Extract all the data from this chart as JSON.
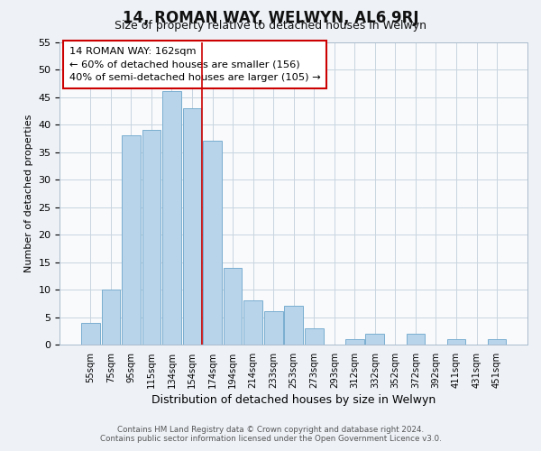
{
  "title": "14, ROMAN WAY, WELWYN, AL6 9RJ",
  "subtitle": "Size of property relative to detached houses in Welwyn",
  "xlabel": "Distribution of detached houses by size in Welwyn",
  "ylabel": "Number of detached properties",
  "bar_labels": [
    "55sqm",
    "75sqm",
    "95sqm",
    "115sqm",
    "134sqm",
    "154sqm",
    "174sqm",
    "194sqm",
    "214sqm",
    "233sqm",
    "253sqm",
    "273sqm",
    "293sqm",
    "312sqm",
    "332sqm",
    "352sqm",
    "372sqm",
    "392sqm",
    "411sqm",
    "431sqm",
    "451sqm"
  ],
  "bar_values": [
    4,
    10,
    38,
    39,
    46,
    43,
    37,
    14,
    8,
    6,
    7,
    3,
    0,
    1,
    2,
    0,
    2,
    0,
    1,
    0,
    1
  ],
  "bar_color": "#b8d4ea",
  "bar_edge_color": "#7aaed0",
  "red_line_x": 5.5,
  "highlight_color": "#cc0000",
  "ylim": [
    0,
    55
  ],
  "yticks": [
    0,
    5,
    10,
    15,
    20,
    25,
    30,
    35,
    40,
    45,
    50,
    55
  ],
  "annotation_line1": "14 ROMAN WAY: 162sqm",
  "annotation_line2": "← 60% of detached houses are smaller (156)",
  "annotation_line3": "40% of semi-detached houses are larger (105) →",
  "footer_line1": "Contains HM Land Registry data © Crown copyright and database right 2024.",
  "footer_line2": "Contains public sector information licensed under the Open Government Licence v3.0.",
  "bg_color": "#eef2f7",
  "plot_bg_color": "#f8fafc",
  "grid_color": "#c8d4e0"
}
